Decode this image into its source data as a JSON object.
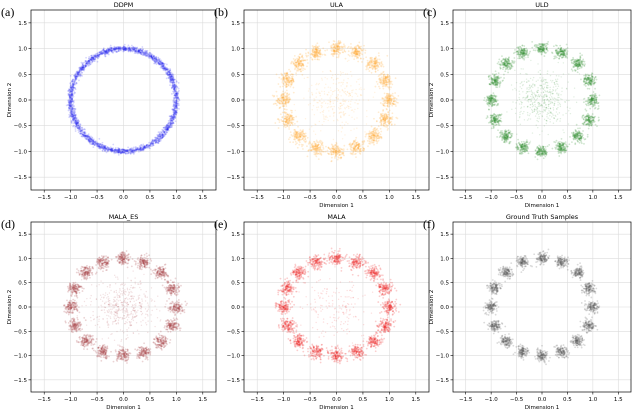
{
  "chart_data": [
    {
      "type": "scatter",
      "letter": "(a)",
      "title": "DDPM",
      "xlabel": "",
      "ylabel": "Dimension 2",
      "xlim": [
        -1.75,
        1.75
      ],
      "ylim": [
        -1.75,
        1.75
      ],
      "xticks": [
        -1.5,
        -1.0,
        -0.5,
        0.0,
        0.5,
        1.0,
        1.5
      ],
      "yticks": [
        -1.5,
        -1.0,
        -0.5,
        0.0,
        0.5,
        1.0,
        1.5
      ],
      "grid": true,
      "color": "#1a1aee",
      "pattern": "ring",
      "ring_radius": 1.0,
      "ring_spread": 0.028
    },
    {
      "type": "scatter",
      "letter": "(b)",
      "title": "ULA",
      "xlabel": "Dimension 1",
      "ylabel": "",
      "xlim": [
        -1.75,
        1.75
      ],
      "ylim": [
        -1.75,
        1.75
      ],
      "xticks": [
        -1.5,
        -1.0,
        -0.5,
        0.0,
        0.5,
        1.0,
        1.5
      ],
      "yticks": [
        -1.5,
        -1.0,
        -0.5,
        0.0,
        0.5,
        1.0,
        1.5
      ],
      "grid": true,
      "color": "#ffaa33",
      "pattern": "clusters",
      "n_clusters": 16,
      "ring_radius": 1.0,
      "cluster_spread": 0.07,
      "center_fraction": 0.14,
      "center_spread": 0.3
    },
    {
      "type": "scatter",
      "letter": "(c)",
      "title": "ULD",
      "xlabel": "Dimension 1",
      "ylabel": "Dimension 2",
      "xlim": [
        -1.75,
        1.75
      ],
      "ylim": [
        -1.75,
        1.75
      ],
      "xticks": [
        -1.5,
        -1.0,
        -0.5,
        0.0,
        0.5,
        1.0,
        1.5
      ],
      "yticks": [
        -1.5,
        -1.0,
        -0.5,
        0.0,
        0.5,
        1.0,
        1.5
      ],
      "grid": true,
      "color": "#2e8b2e",
      "pattern": "clusters",
      "n_clusters": 16,
      "ring_radius": 1.0,
      "cluster_spread": 0.06,
      "center_fraction": 0.22,
      "center_spread": 0.26
    },
    {
      "type": "scatter",
      "letter": "(d)",
      "title": "MALA_ES",
      "xlabel": "Dimension 1",
      "ylabel": "Dimension 2",
      "xlim": [
        -1.75,
        1.75
      ],
      "ylim": [
        -1.75,
        1.75
      ],
      "xticks": [
        -1.5,
        -1.0,
        -0.5,
        0.0,
        0.5,
        1.0,
        1.5
      ],
      "yticks": [
        -1.5,
        -1.0,
        -0.5,
        0.0,
        0.5,
        1.0,
        1.5
      ],
      "grid": true,
      "color": "#a63d40",
      "pattern": "clusters",
      "n_clusters": 16,
      "ring_radius": 1.0,
      "cluster_spread": 0.065,
      "center_fraction": 0.22,
      "center_spread": 0.28
    },
    {
      "type": "scatter",
      "letter": "(e)",
      "title": "MALA",
      "xlabel": "Dimension 1",
      "ylabel": "",
      "xlim": [
        -1.75,
        1.75
      ],
      "ylim": [
        -1.75,
        1.75
      ],
      "xticks": [
        -1.5,
        -1.0,
        -0.5,
        0.0,
        0.5,
        1.0,
        1.5
      ],
      "yticks": [
        -1.5,
        -1.0,
        -0.5,
        0.0,
        0.5,
        1.0,
        1.5
      ],
      "grid": true,
      "color": "#ee2222",
      "pattern": "clusters",
      "n_clusters": 16,
      "ring_radius": 1.0,
      "cluster_spread": 0.07,
      "center_fraction": 0.08,
      "center_spread": 0.3
    },
    {
      "type": "scatter",
      "letter": "(f)",
      "title": "Ground Truth Samples",
      "xlabel": "Dimension 1",
      "ylabel": "Dimension 2",
      "xlim": [
        -1.75,
        1.75
      ],
      "ylim": [
        -1.75,
        1.75
      ],
      "xticks": [
        -1.5,
        -1.0,
        -0.5,
        0.0,
        0.5,
        1.0,
        1.5
      ],
      "yticks": [
        -1.5,
        -1.0,
        -0.5,
        0.0,
        0.5,
        1.0,
        1.5
      ],
      "grid": true,
      "color": "#555555",
      "pattern": "clusters",
      "n_clusters": 16,
      "ring_radius": 1.0,
      "cluster_spread": 0.06,
      "center_fraction": 0.0,
      "center_spread": 0.0
    }
  ]
}
